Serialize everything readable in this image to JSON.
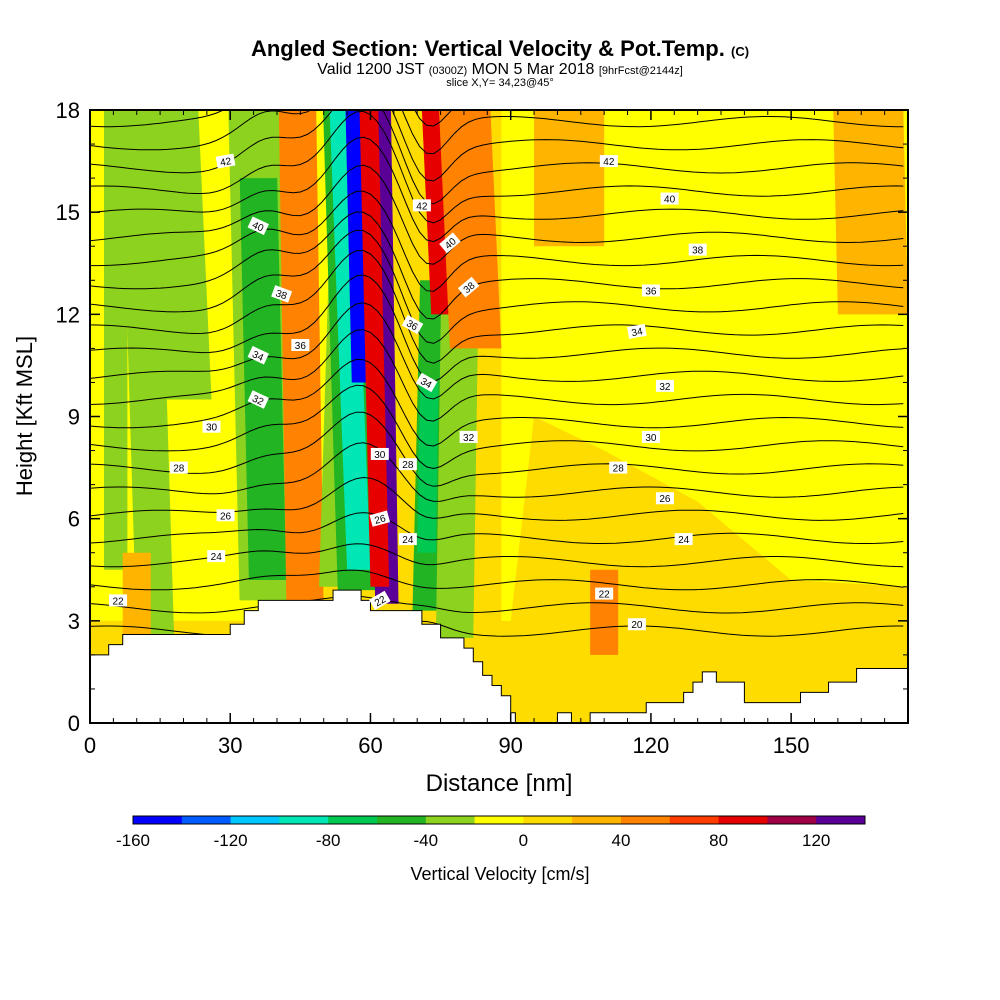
{
  "header": {
    "title_main": "Angled Section: Vertical Velocity & Pot.Temp.",
    "title_units": "(C)",
    "valid_prefix": "Valid 1200 JST",
    "valid_utc": "(0300Z)",
    "valid_date": "MON 5 Mar 2018",
    "valid_fcst": "[9hrFcst@2144z]",
    "slice": "slice X,Y= 34,23@45°"
  },
  "chart_data": {
    "type": "heatmap",
    "xlabel": "Distance [nm]",
    "ylabel": "Height [Kft MSL]",
    "xlim": [
      0,
      175
    ],
    "ylim": [
      0,
      18
    ],
    "x_ticks": [
      0,
      30,
      60,
      90,
      120,
      150
    ],
    "y_ticks": [
      0,
      3,
      6,
      9,
      12,
      15,
      18
    ],
    "colorbar": {
      "label": "Vertical Velocity [cm/s]",
      "tick_values": [
        -160,
        -120,
        -80,
        -40,
        0,
        40,
        80,
        120
      ],
      "min": -160,
      "max": 140,
      "colors": [
        "#0000ff",
        "#005cff",
        "#00c8ff",
        "#00e6b4",
        "#00c850",
        "#23b423",
        "#8cd21e",
        "#ffff00",
        "#ffdc00",
        "#ffb400",
        "#ff8200",
        "#ff3c00",
        "#e60000",
        "#a00046",
        "#5a0096"
      ]
    },
    "terrain_kft": [
      [
        0,
        2.0
      ],
      [
        4,
        2.0
      ],
      [
        4,
        2.3
      ],
      [
        7,
        2.3
      ],
      [
        7,
        2.6
      ],
      [
        10,
        2.6
      ],
      [
        10,
        2.6
      ],
      [
        30,
        2.6
      ],
      [
        30,
        2.9
      ],
      [
        33,
        2.9
      ],
      [
        33,
        3.3
      ],
      [
        36,
        3.3
      ],
      [
        36,
        3.6
      ],
      [
        52,
        3.6
      ],
      [
        52,
        3.9
      ],
      [
        58,
        3.9
      ],
      [
        58,
        3.6
      ],
      [
        60,
        3.6
      ],
      [
        60,
        3.3
      ],
      [
        71,
        3.3
      ],
      [
        71,
        2.9
      ],
      [
        75,
        2.9
      ],
      [
        75,
        2.5
      ],
      [
        80,
        2.5
      ],
      [
        80,
        2.2
      ],
      [
        82,
        2.2
      ],
      [
        82,
        1.8
      ],
      [
        84,
        1.8
      ],
      [
        84,
        1.4
      ],
      [
        86,
        1.4
      ],
      [
        86,
        1.1
      ],
      [
        88,
        1.1
      ],
      [
        88,
        0.8
      ],
      [
        90,
        0.8
      ],
      [
        90,
        0.3
      ],
      [
        91,
        0.3
      ],
      [
        91,
        0
      ],
      [
        100,
        0
      ],
      [
        100,
        0.3
      ],
      [
        103,
        0.3
      ],
      [
        103,
        0
      ],
      [
        107,
        0
      ],
      [
        107,
        0.3
      ],
      [
        112,
        0.3
      ],
      [
        112,
        0.3
      ],
      [
        119,
        0.3
      ],
      [
        119,
        0.6
      ],
      [
        127,
        0.6
      ],
      [
        127,
        0.9
      ],
      [
        129,
        0.9
      ],
      [
        129,
        1.2
      ],
      [
        131,
        1.2
      ],
      [
        131,
        1.5
      ],
      [
        134,
        1.5
      ],
      [
        134,
        1.2
      ],
      [
        140,
        1.2
      ],
      [
        140,
        0.6
      ],
      [
        152,
        0.6
      ],
      [
        152,
        0.9
      ],
      [
        158,
        0.9
      ],
      [
        158,
        1.2
      ],
      [
        164,
        1.2
      ],
      [
        164,
        1.6
      ],
      [
        175,
        1.6
      ]
    ],
    "velocity_features": [
      {
        "x": 6,
        "x0": 3,
        "x1": 8,
        "y0": 4.5,
        "y1": 18,
        "lean": 0,
        "w": 5,
        "value": -40
      },
      {
        "x": 14,
        "x0": 10,
        "x1": 18,
        "y0": 2.5,
        "y1": 18,
        "lean": -4,
        "w": 9,
        "value": -40
      },
      {
        "x": 20,
        "x0": 14,
        "x1": 26,
        "y0": 9.5,
        "y1": 18,
        "lean": -6,
        "w": 10,
        "value": -40
      },
      {
        "x": 38,
        "x0": 32,
        "x1": 44,
        "y0": 3.6,
        "y1": 18,
        "lean": -3,
        "w": 12,
        "value": -40
      },
      {
        "x": 38,
        "x0": 34,
        "x1": 42,
        "y0": 4.2,
        "y1": 16,
        "lean": -3,
        "w": 7,
        "value": -60
      },
      {
        "x": 46,
        "x0": 42,
        "x1": 50,
        "y0": 3.6,
        "y1": 18,
        "lean": -2,
        "w": 4,
        "value": 40
      },
      {
        "x": 52,
        "x0": 49,
        "x1": 55,
        "y0": 4,
        "y1": 14,
        "lean": 4,
        "w": 4,
        "value": -40
      },
      {
        "x": 57,
        "x0": 53,
        "x1": 61,
        "y0": 3.9,
        "y1": 18,
        "lean": -4,
        "w": 8,
        "value": -60
      },
      {
        "x": 57,
        "x0": 55,
        "x1": 60,
        "y0": 4.5,
        "y1": 18,
        "lean": -5,
        "w": 5,
        "value": -100
      },
      {
        "x": 58,
        "x0": 56,
        "x1": 60,
        "y0": 10,
        "y1": 18,
        "lean": -3,
        "w": 3,
        "value": -160
      },
      {
        "x": 64,
        "x0": 61,
        "x1": 66,
        "y0": 3.5,
        "y1": 18,
        "lean": -2,
        "w": 3,
        "value": 120
      },
      {
        "x": 62,
        "x0": 60,
        "x1": 64,
        "y0": 4,
        "y1": 18,
        "lean": -3,
        "w": 4,
        "value": 80
      },
      {
        "x": 72,
        "x0": 69,
        "x1": 76,
        "y0": 3.3,
        "y1": 13,
        "lean": 3,
        "w": 6,
        "value": -60
      },
      {
        "x": 72,
        "x0": 70,
        "x1": 74,
        "y0": 5,
        "y1": 10,
        "lean": 2,
        "w": 3,
        "value": -80
      },
      {
        "x": 78,
        "x0": 74,
        "x1": 82,
        "y0": 2.5,
        "y1": 12,
        "lean": 2,
        "w": 6,
        "value": -40
      },
      {
        "x": 78,
        "x0": 73,
        "x1": 82,
        "y0": 12,
        "y1": 18,
        "lean": -6,
        "w": 6,
        "value": 80
      },
      {
        "x": 82,
        "x0": 77,
        "x1": 88,
        "y0": 11,
        "y1": 18,
        "lean": -6,
        "w": 9,
        "value": 40
      },
      {
        "x": 103,
        "x0": 95,
        "x1": 110,
        "y0": 14,
        "y1": 18,
        "lean": 0,
        "w": 14,
        "value": 20
      },
      {
        "x": 110,
        "x0": 107,
        "x1": 113,
        "y0": 2,
        "y1": 4.5,
        "lean": 0,
        "w": 5,
        "value": 40
      },
      {
        "x": 168,
        "x0": 160,
        "x1": 175,
        "y0": 12,
        "y1": 18,
        "lean": -3,
        "w": 12,
        "value": 20
      },
      {
        "x": 10,
        "x0": 7,
        "x1": 13,
        "y0": 2.5,
        "y1": 5,
        "lean": 0,
        "w": 5,
        "value": 20
      }
    ],
    "contour_levels": [
      20,
      21,
      22,
      23,
      24,
      25,
      26,
      27,
      28,
      29,
      30,
      31,
      32,
      33,
      34,
      35,
      36,
      37,
      38,
      39,
      40,
      41,
      42,
      43,
      44,
      45
    ],
    "contour_labels": [
      {
        "text": "42",
        "x": 29,
        "y": 16.5,
        "angle": -10
      },
      {
        "text": "40",
        "x": 36,
        "y": 14.6,
        "angle": 25
      },
      {
        "text": "38",
        "x": 41,
        "y": 12.6,
        "angle": 20
      },
      {
        "text": "36",
        "x": 45,
        "y": 11.1,
        "angle": 0
      },
      {
        "text": "34",
        "x": 36,
        "y": 10.8,
        "angle": 25
      },
      {
        "text": "32",
        "x": 36,
        "y": 9.5,
        "angle": 25
      },
      {
        "text": "30",
        "x": 26,
        "y": 8.7,
        "angle": 0
      },
      {
        "text": "28",
        "x": 19,
        "y": 7.5,
        "angle": 0
      },
      {
        "text": "26",
        "x": 29,
        "y": 6.1,
        "angle": 0
      },
      {
        "text": "24",
        "x": 27,
        "y": 4.9,
        "angle": 0
      },
      {
        "text": "22",
        "x": 6,
        "y": 3.6,
        "angle": 0
      },
      {
        "text": "42",
        "x": 71,
        "y": 15.2,
        "angle": 0
      },
      {
        "text": "40",
        "x": 77,
        "y": 14.1,
        "angle": -40
      },
      {
        "text": "38",
        "x": 81,
        "y": 12.8,
        "angle": -40
      },
      {
        "text": "36",
        "x": 69,
        "y": 11.7,
        "angle": 30
      },
      {
        "text": "34",
        "x": 72,
        "y": 10.0,
        "angle": 30
      },
      {
        "text": "32",
        "x": 81,
        "y": 8.4,
        "angle": 0
      },
      {
        "text": "30",
        "x": 62,
        "y": 7.9,
        "angle": 0
      },
      {
        "text": "28",
        "x": 68,
        "y": 7.6,
        "angle": 0
      },
      {
        "text": "26",
        "x": 62,
        "y": 6.0,
        "angle": -15
      },
      {
        "text": "24",
        "x": 68,
        "y": 5.4,
        "angle": 0
      },
      {
        "text": "22",
        "x": 62,
        "y": 3.6,
        "angle": -30
      },
      {
        "text": "42",
        "x": 111,
        "y": 16.5,
        "angle": 0
      },
      {
        "text": "40",
        "x": 124,
        "y": 15.4,
        "angle": 0
      },
      {
        "text": "38",
        "x": 130,
        "y": 13.9,
        "angle": 0
      },
      {
        "text": "36",
        "x": 120,
        "y": 12.7,
        "angle": 0
      },
      {
        "text": "34",
        "x": 117,
        "y": 11.5,
        "angle": -10
      },
      {
        "text": "32",
        "x": 123,
        "y": 9.9,
        "angle": 0
      },
      {
        "text": "30",
        "x": 120,
        "y": 8.4,
        "angle": 0
      },
      {
        "text": "28",
        "x": 113,
        "y": 7.5,
        "angle": 0
      },
      {
        "text": "26",
        "x": 123,
        "y": 6.6,
        "angle": 0
      },
      {
        "text": "24",
        "x": 127,
        "y": 5.4,
        "angle": 0
      },
      {
        "text": "22",
        "x": 110,
        "y": 3.8,
        "angle": 0
      },
      {
        "text": "20",
        "x": 117,
        "y": 2.9,
        "angle": 0
      }
    ]
  }
}
